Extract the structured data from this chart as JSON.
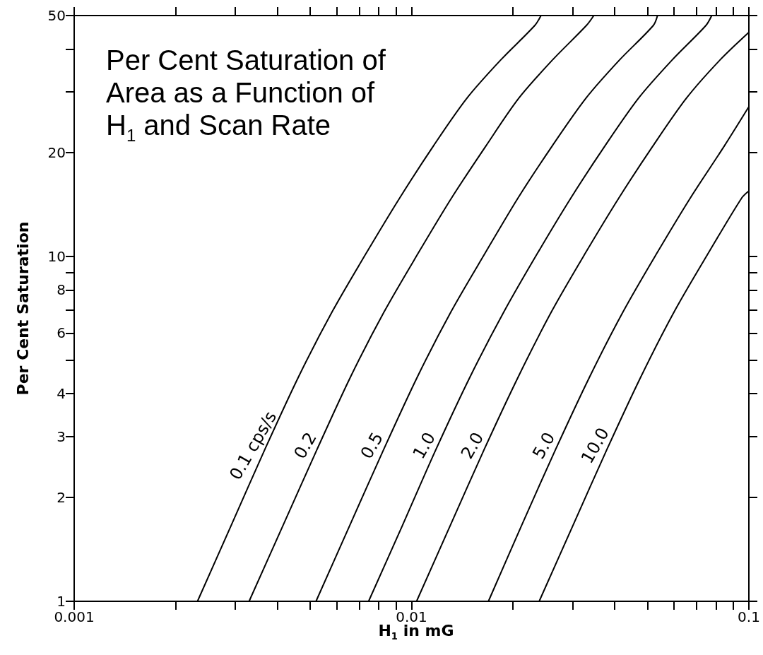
{
  "chart_data": {
    "type": "line",
    "title": "Per Cent Saturation of Area as a Function of H$_{1}$ and Scan Rate",
    "xlabel": "H$_{1}$ in mG",
    "ylabel": "Per Cent Saturation",
    "log": "xy",
    "xlim": [
      0.001,
      0.1
    ],
    "ylim": [
      1,
      50
    ],
    "xticks": [
      0.001,
      {
        "value": 0.002,
        "label": null
      },
      {
        "value": 0.003,
        "label": null
      },
      {
        "value": 0.004,
        "label": null
      },
      {
        "value": 0.005,
        "label": null
      },
      {
        "value": 0.006,
        "label": null
      },
      {
        "value": 0.007,
        "label": null
      },
      {
        "value": 0.008,
        "label": null
      },
      {
        "value": 0.009,
        "label": null
      },
      0.01,
      {
        "value": 0.02,
        "label": null
      },
      {
        "value": 0.03,
        "label": null
      },
      {
        "value": 0.04,
        "label": null
      },
      {
        "value": 0.05,
        "label": null
      },
      {
        "value": 0.06,
        "label": null
      },
      {
        "value": 0.07,
        "label": null
      },
      {
        "value": 0.08,
        "label": null
      },
      {
        "value": 0.09,
        "label": null
      },
      0.1
    ],
    "yticks": [
      1,
      2,
      3,
      4,
      {
        "value": 5,
        "label": null
      },
      6,
      {
        "value": 7,
        "label": null
      },
      8,
      {
        "value": 9,
        "label": null
      },
      10,
      20,
      {
        "value": 30,
        "label": null
      },
      {
        "value": 40,
        "label": null
      },
      50
    ],
    "series": [
      {
        "name": "0.1 cps/s",
        "color": "#000000",
        "x": [
          0.00232,
          0.00292,
          0.00367,
          0.00462,
          0.00582,
          0.00733,
          0.00923,
          0.0116,
          0.0146,
          0.0184,
          0.0232,
          0.0242
        ],
        "values": [
          1,
          1.66,
          2.75,
          4.47,
          6.92,
          10.2,
          14.8,
          20.9,
          28.8,
          37.2,
          46.8,
          50
        ]
      },
      {
        "name": "0.2",
        "color": "#000000",
        "x": [
          0.0033,
          0.00416,
          0.00524,
          0.00659,
          0.0083,
          0.01045,
          0.01315,
          0.0166,
          0.0208,
          0.0262,
          0.033,
          0.0347
        ],
        "values": [
          1,
          1.66,
          2.75,
          4.47,
          6.92,
          10.2,
          14.8,
          20.9,
          28.8,
          37.2,
          46.8,
          50
        ]
      },
      {
        "name": "0.5",
        "color": "#000000",
        "x": [
          0.00521,
          0.00656,
          0.00826,
          0.0104,
          0.0131,
          0.0165,
          0.0207,
          0.0261,
          0.0329,
          0.0414,
          0.0521,
          0.0536
        ],
        "values": [
          1,
          1.66,
          2.75,
          4.47,
          6.92,
          10.2,
          14.8,
          20.9,
          28.8,
          37.2,
          46.8,
          50
        ]
      },
      {
        "name": "1.0",
        "color": "#000000",
        "x": [
          0.00746,
          0.0094,
          0.0118,
          0.0149,
          0.0188,
          0.0236,
          0.0297,
          0.0374,
          0.0471,
          0.0593,
          0.0746,
          0.0776
        ],
        "values": [
          1,
          1.66,
          2.75,
          4.47,
          6.92,
          10.2,
          14.8,
          20.9,
          28.8,
          37.2,
          46.8,
          50
        ]
      },
      {
        "name": "2.0",
        "color": "#000000",
        "x": [
          0.01035,
          0.01303,
          0.0164,
          0.0207,
          0.026,
          0.0327,
          0.0412,
          0.0519,
          0.0653,
          0.0822,
          0.1
        ],
        "values": [
          1,
          1.66,
          2.75,
          4.47,
          6.92,
          10.2,
          14.8,
          20.9,
          28.8,
          37.2,
          44.7
        ]
      },
      {
        "name": "5.0",
        "color": "#000000",
        "x": [
          0.0169,
          0.0212,
          0.0267,
          0.0337,
          0.0424,
          0.0533,
          0.0671,
          0.0845,
          0.1
        ],
        "values": [
          1,
          1.66,
          2.75,
          4.47,
          6.92,
          10.2,
          14.8,
          20.9,
          27.2
        ]
      },
      {
        "name": "10.0",
        "color": "#000000",
        "x": [
          0.0239,
          0.0301,
          0.0379,
          0.0478,
          0.0601,
          0.0757,
          0.0953,
          0.1
        ],
        "values": [
          1,
          1.66,
          2.75,
          4.47,
          6.92,
          10.2,
          14.8,
          15.5
        ]
      }
    ]
  }
}
